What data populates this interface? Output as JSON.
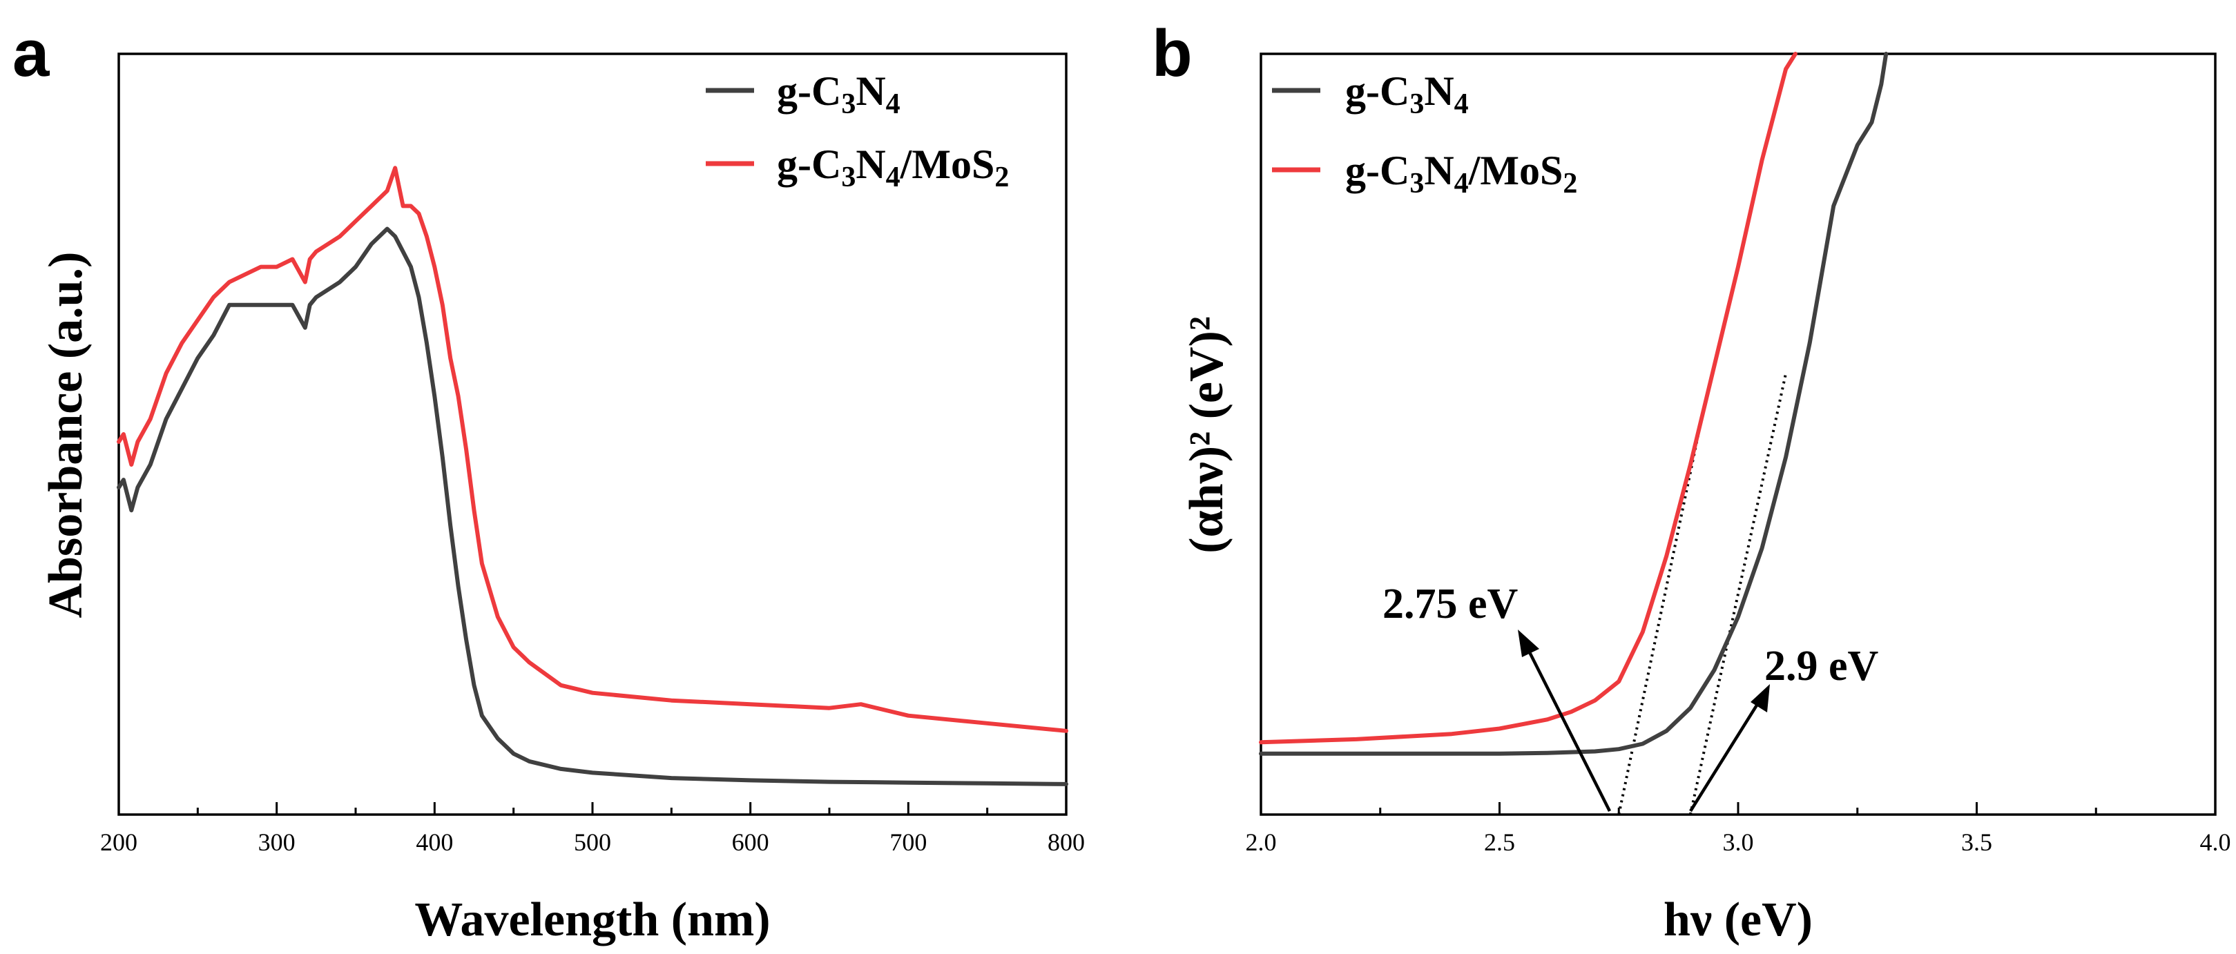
{
  "colors": {
    "series1": "#404040",
    "series2": "#ee3a3d",
    "axis": "#000000"
  },
  "chart_data": [
    {
      "panel": "a",
      "type": "line",
      "xlabel": "Wavelength (nm)",
      "ylabel": "Absorbance (a.u.)",
      "xlim": [
        200,
        800
      ],
      "ylim": [
        0,
        1
      ],
      "xticks": [
        "200",
        "300",
        "400",
        "500",
        "600",
        "700",
        "800"
      ],
      "yticks_visible": false,
      "legend": {
        "placement": "top-right",
        "entries": [
          {
            "text": "g-C3N4",
            "sub": [
              "3",
              "4"
            ]
          },
          {
            "text": "g-C3N4/MoS2",
            "sub": [
              "3",
              "4",
              "2"
            ]
          }
        ]
      },
      "series": [
        {
          "name": "g-C3N4",
          "color": "#404040",
          "x": [
            200,
            203,
            208,
            212,
            220,
            230,
            240,
            250,
            260,
            270,
            280,
            290,
            300,
            310,
            318,
            321,
            325,
            340,
            350,
            360,
            370,
            375,
            380,
            385,
            390,
            395,
            400,
            405,
            410,
            415,
            420,
            425,
            430,
            440,
            450,
            460,
            480,
            500,
            550,
            600,
            650,
            700,
            750,
            800
          ],
          "y": [
            0.43,
            0.44,
            0.4,
            0.43,
            0.46,
            0.52,
            0.56,
            0.6,
            0.63,
            0.67,
            0.67,
            0.67,
            0.67,
            0.67,
            0.64,
            0.67,
            0.68,
            0.7,
            0.72,
            0.75,
            0.77,
            0.76,
            0.74,
            0.72,
            0.68,
            0.62,
            0.55,
            0.47,
            0.38,
            0.3,
            0.23,
            0.17,
            0.13,
            0.1,
            0.08,
            0.07,
            0.06,
            0.055,
            0.048,
            0.045,
            0.043,
            0.042,
            0.041,
            0.04
          ]
        },
        {
          "name": "g-C3N4/MoS2",
          "color": "#ee3a3d",
          "x": [
            200,
            203,
            208,
            212,
            220,
            230,
            240,
            250,
            260,
            270,
            280,
            290,
            300,
            310,
            318,
            321,
            325,
            340,
            350,
            360,
            370,
            375,
            380,
            385,
            390,
            395,
            400,
            405,
            410,
            415,
            420,
            425,
            430,
            440,
            450,
            460,
            480,
            500,
            550,
            600,
            650,
            670,
            700,
            750,
            800
          ],
          "y": [
            0.49,
            0.5,
            0.46,
            0.49,
            0.52,
            0.58,
            0.62,
            0.65,
            0.68,
            0.7,
            0.71,
            0.72,
            0.72,
            0.73,
            0.7,
            0.73,
            0.74,
            0.76,
            0.78,
            0.8,
            0.82,
            0.85,
            0.8,
            0.8,
            0.79,
            0.76,
            0.72,
            0.67,
            0.6,
            0.55,
            0.48,
            0.4,
            0.33,
            0.26,
            0.22,
            0.2,
            0.17,
            0.16,
            0.15,
            0.145,
            0.14,
            0.145,
            0.13,
            0.12,
            0.11
          ]
        }
      ]
    },
    {
      "panel": "b",
      "type": "line",
      "xlabel": "hν (eV)",
      "ylabel": "(αhν)² (eV)²",
      "xlim": [
        2.0,
        4.0
      ],
      "ylim": [
        0,
        1
      ],
      "xticks": [
        "2.0",
        "2.5",
        "3.0",
        "3.5",
        "4.0"
      ],
      "yticks_visible": false,
      "legend": {
        "placement": "top-left",
        "entries": [
          {
            "text": "g-C3N4",
            "sub": [
              "3",
              "4"
            ]
          },
          {
            "text": "g-C3N4/MoS2",
            "sub": [
              "3",
              "4",
              "2"
            ]
          }
        ]
      },
      "series": [
        {
          "name": "g-C3N4",
          "color": "#404040",
          "x": [
            2.0,
            2.3,
            2.5,
            2.6,
            2.7,
            2.75,
            2.8,
            2.85,
            2.9,
            2.95,
            3.0,
            3.05,
            3.1,
            3.15,
            3.2,
            3.25,
            3.28,
            3.3,
            3.31
          ],
          "y": [
            0.08,
            0.08,
            0.08,
            0.081,
            0.083,
            0.086,
            0.093,
            0.11,
            0.14,
            0.19,
            0.26,
            0.35,
            0.47,
            0.62,
            0.8,
            0.88,
            0.91,
            0.96,
            1.0
          ]
        },
        {
          "name": "g-C3N4/MoS2",
          "color": "#ee3a3d",
          "x": [
            2.0,
            2.2,
            2.4,
            2.5,
            2.6,
            2.65,
            2.7,
            2.75,
            2.8,
            2.85,
            2.9,
            2.95,
            3.0,
            3.05,
            3.1,
            3.12
          ],
          "y": [
            0.095,
            0.099,
            0.106,
            0.113,
            0.125,
            0.135,
            0.15,
            0.175,
            0.24,
            0.34,
            0.46,
            0.59,
            0.72,
            0.86,
            0.98,
            1.0
          ]
        }
      ],
      "fit_lines": [
        {
          "series": "g-C3N4/MoS2",
          "x": [
            2.75,
            2.93
          ],
          "y": [
            0.0,
            0.54
          ]
        },
        {
          "series": "g-C3N4",
          "x": [
            2.9,
            3.1
          ],
          "y": [
            0.0,
            0.58
          ]
        }
      ],
      "annotations": [
        {
          "text": "2.75 eV",
          "x": 2.75
        },
        {
          "text": "2.9 eV",
          "x": 2.9
        }
      ]
    }
  ]
}
